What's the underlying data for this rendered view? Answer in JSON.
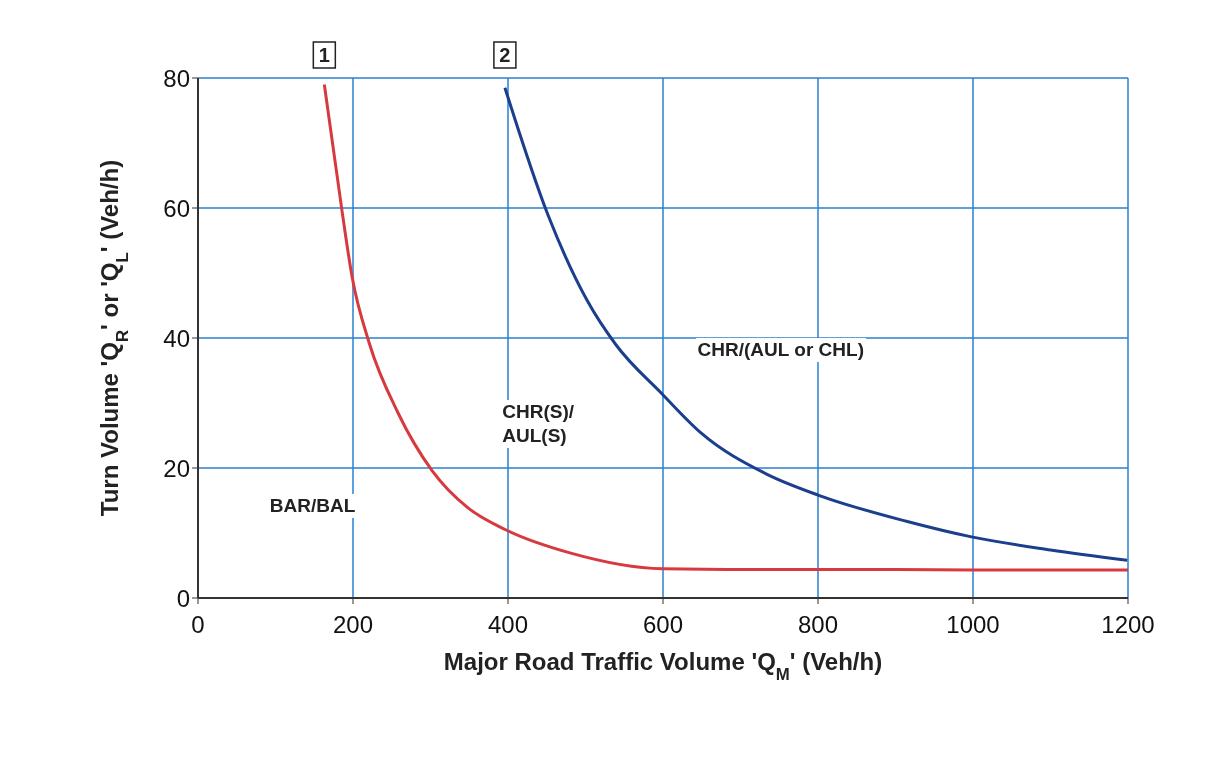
{
  "chart_data": {
    "type": "line",
    "xlabel": "Major Road Traffic Volume 'Q$_{M}$' (Veh/h)",
    "ylabel": "Turn Volume 'Q$_{R}$' or 'Q$_{L}$' (Veh/h)",
    "series": [
      {
        "name": "1",
        "color": "#d63a3f",
        "x": [
          163,
          186,
          199,
          221,
          258,
          302,
          348,
          397,
          481,
          599,
          700,
          800,
          900,
          1000,
          1100,
          1200
        ],
        "values": [
          79,
          59.4,
          49.3,
          39.2,
          28.5,
          19.6,
          13.9,
          10.5,
          6.9,
          4.5,
          4.4,
          4.4,
          4.4,
          4.3,
          4.3,
          4.3
        ]
      },
      {
        "name": "2",
        "color": "#1b3f8c",
        "x": [
          396,
          452,
          502,
          539,
          598,
          649,
          733,
          801,
          914,
          998,
          1100,
          1199
        ],
        "values": [
          78.5,
          58.8,
          45.8,
          39,
          31.5,
          25.4,
          19.1,
          15.8,
          11.8,
          9.4,
          7.4,
          5.8
        ]
      }
    ],
    "xlim": [
      0,
      1200
    ],
    "xticks": [
      0,
      200,
      400,
      600,
      800,
      1000,
      1200
    ],
    "ylim": [
      0,
      80
    ],
    "yticks": [
      0,
      20,
      40,
      60,
      80
    ],
    "grid": true,
    "line_style": "solid",
    "marker": "none",
    "annotations": [
      "BAR/BAL",
      "CHR(S)/\nAUL(S)",
      "CHR/(AUL or CHL)"
    ]
  }
}
